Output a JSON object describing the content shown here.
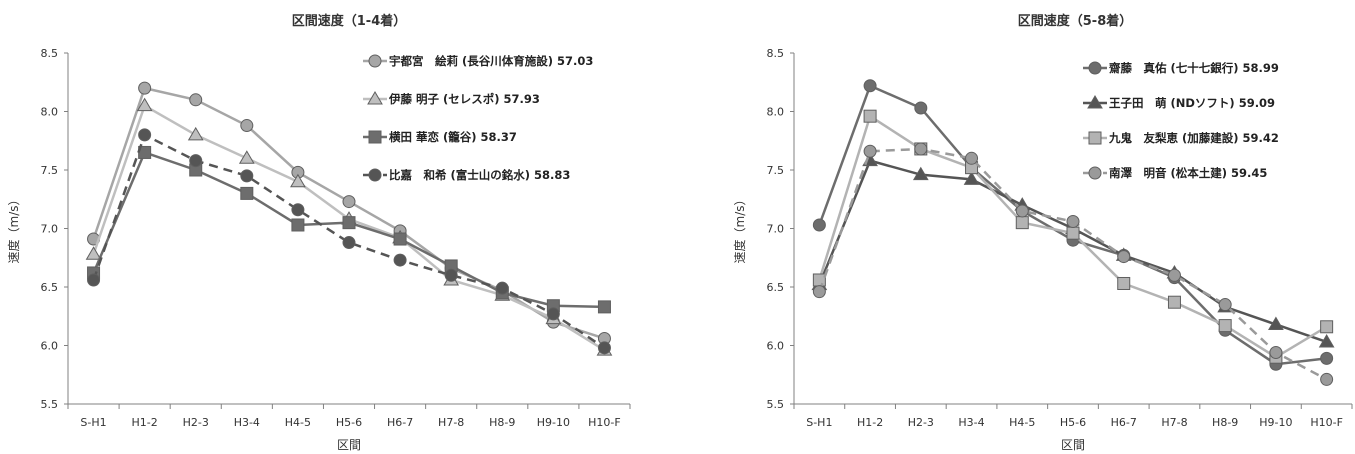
{
  "chart_data": [
    {
      "type": "line",
      "title": "区間速度（1-4着）",
      "xlabel": "区間",
      "ylabel": "速度（m/s）",
      "ylim": [
        5.5,
        8.5
      ],
      "yticks": [
        "8.5",
        "8.0",
        "7.5",
        "7.0",
        "6.5",
        "6.0",
        "5.5"
      ],
      "categories": [
        "S-H1",
        "H1-2",
        "H2-3",
        "H3-4",
        "H4-5",
        "H5-6",
        "H6-7",
        "H7-8",
        "H8-9",
        "H9-10",
        "H10-F"
      ],
      "legend_position": "top-right",
      "series": [
        {
          "name": "宇都宮　絵莉 (長谷川体育施設) 57.03",
          "color": "#a6a6a6",
          "marker": "circle",
          "dash": "solid",
          "values": [
            6.91,
            8.2,
            8.1,
            7.88,
            7.48,
            7.23,
            6.98,
            6.66,
            6.47,
            6.2,
            6.06
          ]
        },
        {
          "name": "伊藤 明子 (セレスポ) 57.93",
          "color": "#bfbfbf",
          "marker": "triangle",
          "dash": "solid",
          "values": [
            6.78,
            8.05,
            7.8,
            7.6,
            7.4,
            7.08,
            6.92,
            6.56,
            6.43,
            6.23,
            5.96
          ]
        },
        {
          "name": "横田 華恋 (籠谷) 58.37",
          "color": "#6d6d6d",
          "marker": "square",
          "dash": "solid",
          "values": [
            6.62,
            7.65,
            7.5,
            7.3,
            7.03,
            7.05,
            6.91,
            6.68,
            6.45,
            6.34,
            6.33
          ]
        },
        {
          "name": "比嘉　和希 (富士山の銘水) 58.83",
          "color": "#555555",
          "marker": "circle",
          "dash": "dashed",
          "values": [
            6.56,
            7.8,
            7.58,
            7.45,
            7.16,
            6.88,
            6.73,
            6.6,
            6.49,
            6.27,
            5.98
          ]
        }
      ]
    },
    {
      "type": "line",
      "title": "区間速度（5-8着）",
      "xlabel": "区間",
      "ylabel": "速度（m/s）",
      "ylim": [
        5.5,
        8.5
      ],
      "yticks": [
        "8.5",
        "8.0",
        "7.5",
        "7.0",
        "6.5",
        "6.0",
        "5.5"
      ],
      "categories": [
        "S-H1",
        "H1-2",
        "H2-3",
        "H3-4",
        "H4-5",
        "H5-6",
        "H6-7",
        "H7-8",
        "H8-9",
        "H9-10",
        "H10-F"
      ],
      "legend_position": "top-right",
      "series": [
        {
          "name": "齋藤　真佑 (七十七銀行) 58.99",
          "color": "#6d6d6d",
          "marker": "circle",
          "dash": "solid",
          "values": [
            7.03,
            8.22,
            8.03,
            7.52,
            7.15,
            6.9,
            6.77,
            6.58,
            6.13,
            5.84,
            5.89
          ]
        },
        {
          "name": "王子田　萌 (NDソフト) 59.09",
          "color": "#555555",
          "marker": "triangle",
          "dash": "solid",
          "values": [
            6.52,
            7.58,
            7.46,
            7.42,
            7.2,
            7.0,
            6.77,
            6.62,
            6.33,
            6.18,
            6.03
          ]
        },
        {
          "name": "九鬼　友梨恵 (加藤建設) 59.42",
          "color": "#b3b3b3",
          "marker": "square",
          "dash": "solid",
          "values": [
            6.56,
            7.96,
            7.68,
            7.52,
            7.05,
            6.96,
            6.53,
            6.37,
            6.17,
            5.9,
            6.16
          ]
        },
        {
          "name": "南澤　明音 (松本土建) 59.45",
          "color": "#9a9a9a",
          "marker": "circle",
          "dash": "dashed",
          "values": [
            6.46,
            7.66,
            7.68,
            7.6,
            7.15,
            7.06,
            6.76,
            6.6,
            6.35,
            5.94,
            5.71
          ]
        }
      ]
    }
  ]
}
